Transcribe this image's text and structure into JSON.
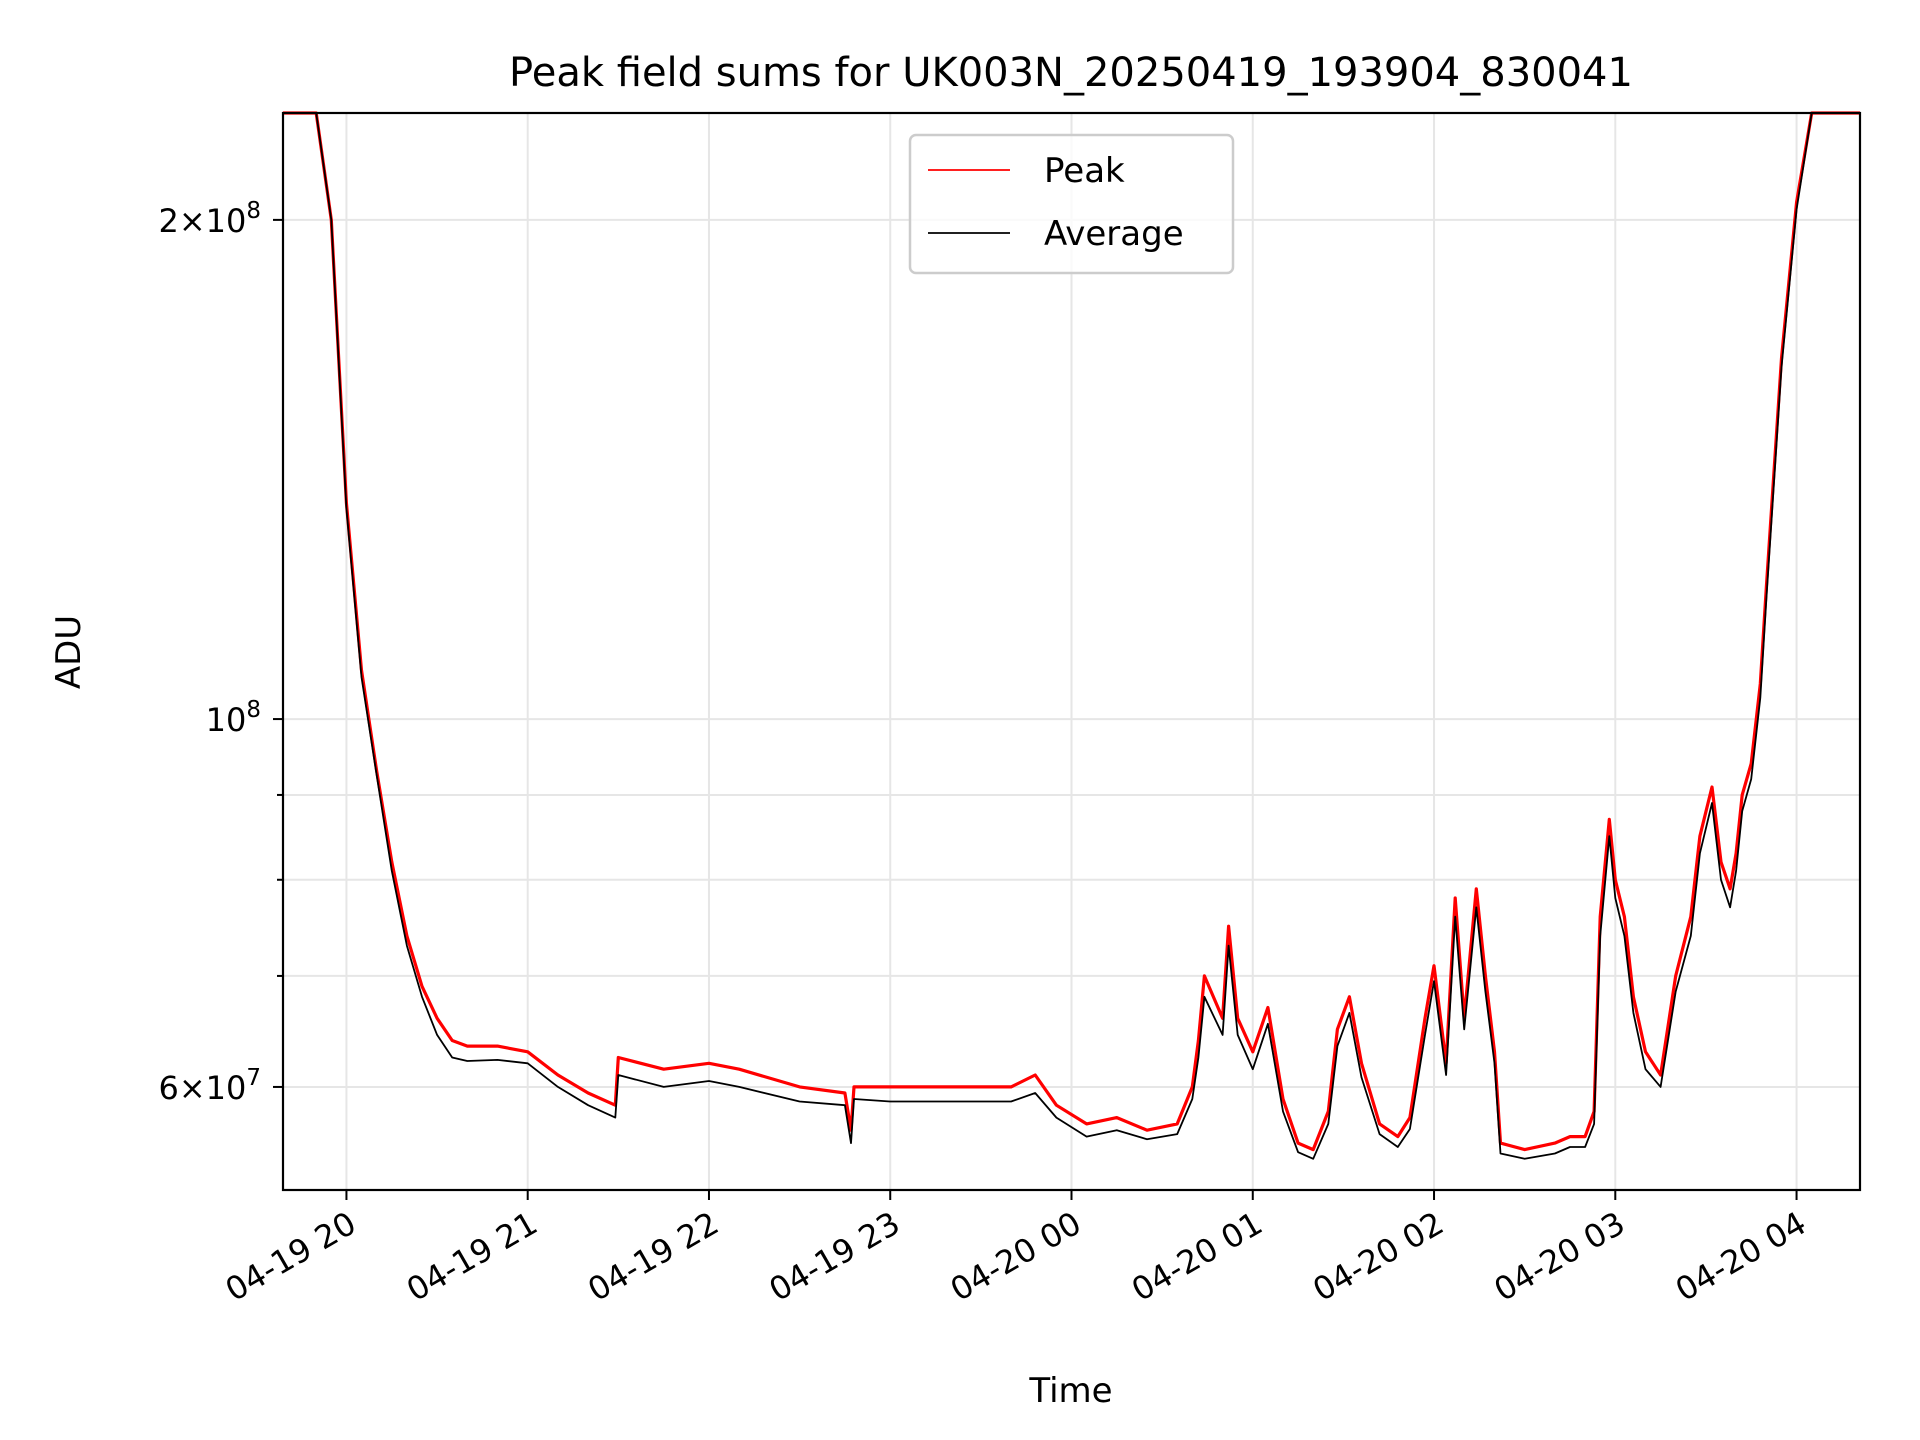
{
  "chart_data": {
    "type": "line",
    "title": "Peak field sums for UK003N_20250419_193904_830041",
    "xlabel": "Time",
    "ylabel": "ADU",
    "y_scale": "log",
    "ylim": [
      52000000,
      232000000
    ],
    "xlim": [
      "2025-04-19 19:39",
      "2025-04-20 04:21"
    ],
    "grid": true,
    "legend": "upper center",
    "x_ticks": [
      {
        "value": "2025-04-19 20:00",
        "label": "04-19 20"
      },
      {
        "value": "2025-04-19 21:00",
        "label": "04-19 21"
      },
      {
        "value": "2025-04-19 22:00",
        "label": "04-19 22"
      },
      {
        "value": "2025-04-19 23:00",
        "label": "04-19 23"
      },
      {
        "value": "2025-04-20 00:00",
        "label": "04-20 00"
      },
      {
        "value": "2025-04-20 01:00",
        "label": "04-20 01"
      },
      {
        "value": "2025-04-20 02:00",
        "label": "04-20 02"
      },
      {
        "value": "2025-04-20 03:00",
        "label": "04-20 03"
      },
      {
        "value": "2025-04-20 04:00",
        "label": "04-20 04"
      }
    ],
    "y_major_ticks": [
      {
        "value": 60000000,
        "mant": "6",
        "exp": "7"
      },
      {
        "value": 100000000,
        "mant": "",
        "exp": "8"
      },
      {
        "value": 200000000,
        "mant": "2",
        "exp": "8"
      }
    ],
    "y_minor_ticks": [
      70000000,
      80000000,
      90000000
    ],
    "series": [
      {
        "name": "Peak",
        "color": "#ff0000",
        "x": [
          "2025-04-19 19:39",
          "2025-04-19 19:50",
          "2025-04-19 19:55",
          "2025-04-19 20:00",
          "2025-04-19 20:05",
          "2025-04-19 20:10",
          "2025-04-19 20:15",
          "2025-04-19 20:20",
          "2025-04-19 20:25",
          "2025-04-19 20:30",
          "2025-04-19 20:35",
          "2025-04-19 20:40",
          "2025-04-19 20:50",
          "2025-04-19 21:00",
          "2025-04-19 21:10",
          "2025-04-19 21:20",
          "2025-04-19 21:29",
          "2025-04-19 21:30",
          "2025-04-19 21:45",
          "2025-04-19 22:00",
          "2025-04-19 22:10",
          "2025-04-19 22:30",
          "2025-04-19 22:45",
          "2025-04-19 22:47",
          "2025-04-19 22:48",
          "2025-04-19 23:00",
          "2025-04-19 23:20",
          "2025-04-19 23:40",
          "2025-04-19 23:48",
          "2025-04-19 23:55",
          "2025-04-20 00:05",
          "2025-04-20 00:15",
          "2025-04-20 00:25",
          "2025-04-20 00:35",
          "2025-04-20 00:40",
          "2025-04-20 00:42",
          "2025-04-20 00:44",
          "2025-04-20 00:50",
          "2025-04-20 00:52",
          "2025-04-20 00:55",
          "2025-04-20 01:00",
          "2025-04-20 01:05",
          "2025-04-20 01:10",
          "2025-04-20 01:15",
          "2025-04-20 01:20",
          "2025-04-20 01:25",
          "2025-04-20 01:28",
          "2025-04-20 01:32",
          "2025-04-20 01:36",
          "2025-04-20 01:42",
          "2025-04-20 01:48",
          "2025-04-20 01:52",
          "2025-04-20 01:57",
          "2025-04-20 02:00",
          "2025-04-20 02:04",
          "2025-04-20 02:07",
          "2025-04-20 02:10",
          "2025-04-20 02:14",
          "2025-04-20 02:17",
          "2025-04-20 02:20",
          "2025-04-20 02:22",
          "2025-04-20 02:30",
          "2025-04-20 02:40",
          "2025-04-20 02:45",
          "2025-04-20 02:50",
          "2025-04-20 02:53",
          "2025-04-20 02:55",
          "2025-04-20 02:58",
          "2025-04-20 03:00",
          "2025-04-20 03:03",
          "2025-04-20 03:06",
          "2025-04-20 03:10",
          "2025-04-20 03:15",
          "2025-04-20 03:20",
          "2025-04-20 03:25",
          "2025-04-20 03:28",
          "2025-04-20 03:32",
          "2025-04-20 03:35",
          "2025-04-20 03:38",
          "2025-04-20 03:40",
          "2025-04-20 03:42",
          "2025-04-20 03:45",
          "2025-04-20 03:48",
          "2025-04-20 03:50",
          "2025-04-20 03:55",
          "2025-04-20 04:00",
          "2025-04-20 04:05",
          "2025-04-20 04:21"
        ],
        "y": [
          232000000,
          232000000,
          200000000,
          135000000,
          107000000,
          93000000,
          82000000,
          74000000,
          69000000,
          66000000,
          64000000,
          63500000,
          63500000,
          63000000,
          61000000,
          59500000,
          58500000,
          62500000,
          61500000,
          62000000,
          61500000,
          60000000,
          59500000,
          56500000,
          60000000,
          60000000,
          60000000,
          60000000,
          61000000,
          58500000,
          57000000,
          57500000,
          56500000,
          57000000,
          60000000,
          64000000,
          70000000,
          66000000,
          75000000,
          66000000,
          63000000,
          67000000,
          59000000,
          55500000,
          55000000,
          58000000,
          65000000,
          68000000,
          62000000,
          57000000,
          56000000,
          57500000,
          66000000,
          71000000,
          62000000,
          78000000,
          66000000,
          79000000,
          70000000,
          63000000,
          55500000,
          55000000,
          55500000,
          56000000,
          56000000,
          58000000,
          76000000,
          87000000,
          80000000,
          76000000,
          68000000,
          63000000,
          61000000,
          70000000,
          76000000,
          85000000,
          91000000,
          82000000,
          79000000,
          83000000,
          90000000,
          94000000,
          105000000,
          120000000,
          165000000,
          205000000,
          232000000,
          232000000
        ]
      },
      {
        "name": "Average",
        "color": "#000000",
        "x": [
          "2025-04-19 19:39",
          "2025-04-19 19:50",
          "2025-04-19 19:55",
          "2025-04-19 20:00",
          "2025-04-19 20:05",
          "2025-04-19 20:10",
          "2025-04-19 20:15",
          "2025-04-19 20:20",
          "2025-04-19 20:25",
          "2025-04-19 20:30",
          "2025-04-19 20:35",
          "2025-04-19 20:40",
          "2025-04-19 20:50",
          "2025-04-19 21:00",
          "2025-04-19 21:10",
          "2025-04-19 21:20",
          "2025-04-19 21:29",
          "2025-04-19 21:30",
          "2025-04-19 21:45",
          "2025-04-19 22:00",
          "2025-04-19 22:10",
          "2025-04-19 22:30",
          "2025-04-19 22:45",
          "2025-04-19 22:47",
          "2025-04-19 22:48",
          "2025-04-19 23:00",
          "2025-04-19 23:20",
          "2025-04-19 23:40",
          "2025-04-19 23:48",
          "2025-04-19 23:55",
          "2025-04-20 00:05",
          "2025-04-20 00:15",
          "2025-04-20 00:25",
          "2025-04-20 00:35",
          "2025-04-20 00:40",
          "2025-04-20 00:42",
          "2025-04-20 00:44",
          "2025-04-20 00:50",
          "2025-04-20 00:52",
          "2025-04-20 00:55",
          "2025-04-20 01:00",
          "2025-04-20 01:05",
          "2025-04-20 01:10",
          "2025-04-20 01:15",
          "2025-04-20 01:20",
          "2025-04-20 01:25",
          "2025-04-20 01:28",
          "2025-04-20 01:32",
          "2025-04-20 01:36",
          "2025-04-20 01:42",
          "2025-04-20 01:48",
          "2025-04-20 01:52",
          "2025-04-20 01:57",
          "2025-04-20 02:00",
          "2025-04-20 02:04",
          "2025-04-20 02:07",
          "2025-04-20 02:10",
          "2025-04-20 02:14",
          "2025-04-20 02:17",
          "2025-04-20 02:20",
          "2025-04-20 02:22",
          "2025-04-20 02:30",
          "2025-04-20 02:40",
          "2025-04-20 02:45",
          "2025-04-20 02:50",
          "2025-04-20 02:53",
          "2025-04-20 02:55",
          "2025-04-20 02:58",
          "2025-04-20 03:00",
          "2025-04-20 03:03",
          "2025-04-20 03:06",
          "2025-04-20 03:10",
          "2025-04-20 03:15",
          "2025-04-20 03:20",
          "2025-04-20 03:25",
          "2025-04-20 03:28",
          "2025-04-20 03:32",
          "2025-04-20 03:35",
          "2025-04-20 03:38",
          "2025-04-20 03:40",
          "2025-04-20 03:42",
          "2025-04-20 03:45",
          "2025-04-20 03:48",
          "2025-04-20 03:50",
          "2025-04-20 03:55",
          "2025-04-20 04:00",
          "2025-04-20 04:05",
          "2025-04-20 04:21"
        ],
        "y": [
          232000000,
          232000000,
          200000000,
          134000000,
          106000000,
          92500000,
          81000000,
          73000000,
          68000000,
          64500000,
          62500000,
          62200000,
          62300000,
          62000000,
          60000000,
          58500000,
          57500000,
          61000000,
          60000000,
          60500000,
          60000000,
          58800000,
          58500000,
          55500000,
          59000000,
          58800000,
          58800000,
          58800000,
          59500000,
          57500000,
          56000000,
          56500000,
          55800000,
          56200000,
          59000000,
          62500000,
          68000000,
          64500000,
          73000000,
          64500000,
          61500000,
          65500000,
          58000000,
          54800000,
          54300000,
          57000000,
          63500000,
          66500000,
          60800000,
          56200000,
          55200000,
          56600000,
          64500000,
          69500000,
          61000000,
          76000000,
          65000000,
          77000000,
          68500000,
          62000000,
          54700000,
          54300000,
          54700000,
          55200000,
          55200000,
          57000000,
          74000000,
          85000000,
          78000000,
          74000000,
          66500000,
          61500000,
          60000000,
          68500000,
          74000000,
          83000000,
          89000000,
          80000000,
          77000000,
          81000000,
          88000000,
          92000000,
          103000000,
          118000000,
          163000000,
          203000000,
          232000000,
          232000000
        ]
      }
    ]
  }
}
